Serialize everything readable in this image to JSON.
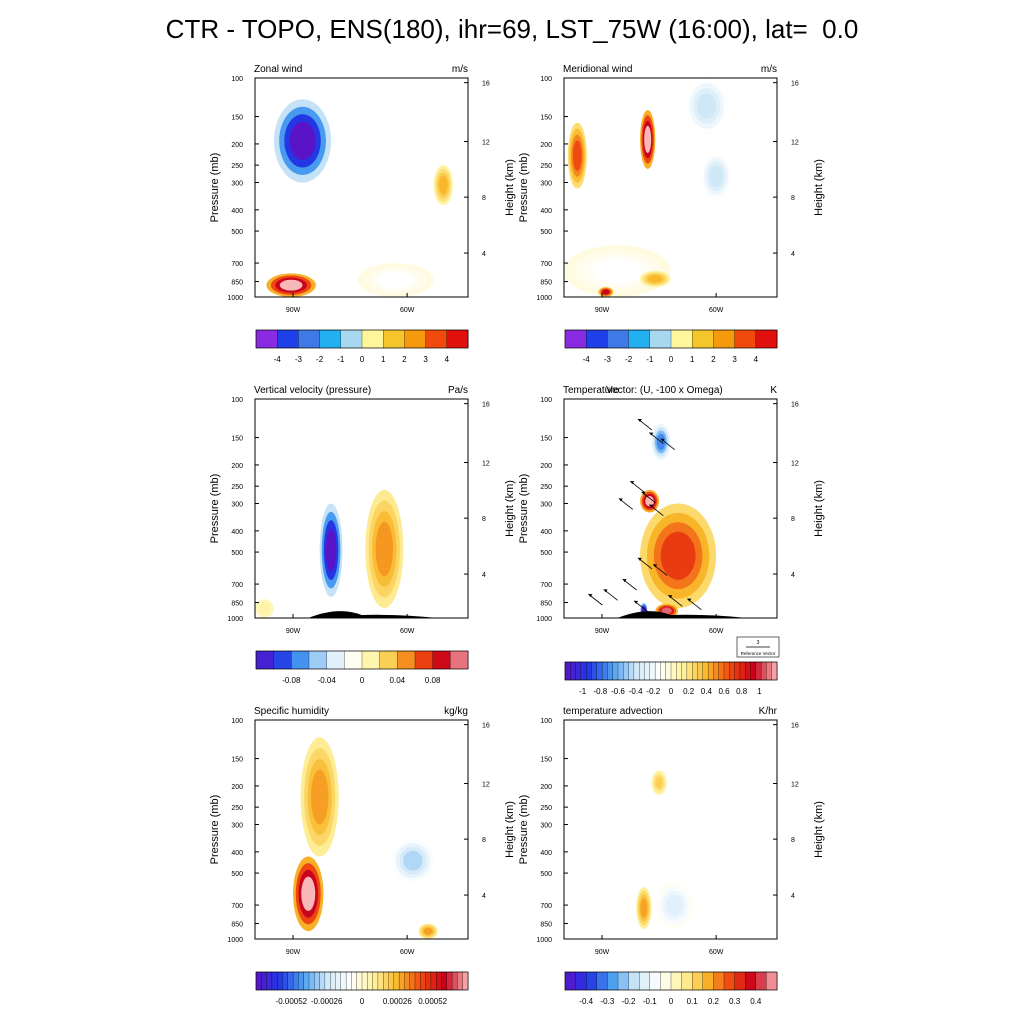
{
  "title": "CTR - TOPO, ENS(180), ihr=69, LST_75W (16:00), lat=  0.0",
  "colors": {
    "wind_scale": [
      "#8a2be2",
      "#1f3fe8",
      "#3d7ae5",
      "#22b0f0",
      "#a8d8f0",
      "#fff59a",
      "#f5c52c",
      "#f59a0c",
      "#f04a0c",
      "#e0100c",
      "#f9b0b0"
    ],
    "diverging_cold": "#6a1fd8",
    "diverging_neutral": "#ffffff",
    "diverging_hot": "#c8001a",
    "terrain": "#000000"
  },
  "chart_data": [
    {
      "type": "heatmap",
      "title": "Zonal wind",
      "units": "m/s",
      "ylabel": "Pressure (mb)",
      "ylabel_right": "Height (km)",
      "pressure_ticks": [
        "100",
        "150",
        "200",
        "250",
        "300",
        "400",
        "500",
        "700",
        "850",
        "1000"
      ],
      "height_ticks": [
        "4",
        "8",
        "12",
        "16"
      ],
      "x_ticks": [
        "90W",
        "60W"
      ],
      "colorbar_labels": [
        "-4",
        "-3",
        "-2",
        "-1",
        "0",
        "1",
        "2",
        "3",
        "4"
      ],
      "colorbar_colors": "wind_scale",
      "regions": [
        {
          "lon": [
            -95,
            -80
          ],
          "p": [
            125,
            300
          ],
          "value": -4.5
        },
        {
          "lon": [
            -97,
            -84
          ],
          "p": [
            780,
            1000
          ],
          "value": 4.5
        },
        {
          "lon": [
            -53,
            -48
          ],
          "p": [
            250,
            380
          ],
          "value": 1.5
        },
        {
          "lon": [
            -73,
            -53
          ],
          "p": [
            700,
            1000
          ],
          "value": -0.5
        }
      ]
    },
    {
      "type": "heatmap",
      "title": "Meridional wind",
      "units": "m/s",
      "ylabel": "Pressure (mb)",
      "ylabel_right": "Height (km)",
      "pressure_ticks": [
        "100",
        "150",
        "200",
        "250",
        "300",
        "400",
        "500",
        "700",
        "850",
        "1000"
      ],
      "height_ticks": [
        "4",
        "8",
        "12",
        "16"
      ],
      "x_ticks": [
        "90W",
        "60W"
      ],
      "colorbar_labels": [
        "-4",
        "-3",
        "-2",
        "-1",
        "0",
        "1",
        "2",
        "3",
        "4"
      ],
      "colorbar_colors": "wind_scale",
      "regions": [
        {
          "lon": [
            -80,
            -76
          ],
          "p": [
            140,
            260
          ],
          "value": 4.5
        },
        {
          "lon": [
            -99,
            -94
          ],
          "p": [
            160,
            320
          ],
          "value": 2.5
        },
        {
          "lon": [
            -68,
            -57
          ],
          "p": [
            100,
            180
          ],
          "value": -1.5
        },
        {
          "lon": [
            -64,
            -56
          ],
          "p": [
            220,
            360
          ],
          "value": -1.5
        },
        {
          "lon": [
            -100,
            -72
          ],
          "p": [
            580,
            1000
          ],
          "value": -0.5
        },
        {
          "lon": [
            -80,
            -72
          ],
          "p": [
            760,
            900
          ],
          "value": 1.5
        },
        {
          "lon": [
            -91,
            -87
          ],
          "p": [
            900,
            1000
          ],
          "value": 3.5
        }
      ]
    },
    {
      "type": "heatmap",
      "title": "Vertical velocity (pressure)",
      "units": "Pa/s",
      "ylabel": "Pressure (mb)",
      "ylabel_right": "Height (km)",
      "pressure_ticks": [
        "100",
        "150",
        "200",
        "250",
        "300",
        "400",
        "500",
        "700",
        "850",
        "1000"
      ],
      "height_ticks": [
        "4",
        "8",
        "12",
        "16"
      ],
      "x_ticks": [
        "90W",
        "60W"
      ],
      "colorbar_labels": [
        "-0.08",
        "-0.04",
        "0",
        "0.04",
        "0.08"
      ],
      "colorbar_colors": "wind_scale",
      "regions": [
        {
          "lon": [
            -83,
            -77
          ],
          "p": [
            300,
            800
          ],
          "value": -0.1
        },
        {
          "lon": [
            -71,
            -61
          ],
          "p": [
            260,
            900
          ],
          "value": 0.04
        },
        {
          "lon": [
            -100,
            -95
          ],
          "p": [
            820,
            1000
          ],
          "value": 0.01
        }
      ]
    },
    {
      "type": "heatmap",
      "title": "Temperature",
      "title_overlay": "Vector: (U, -100 x Omega)",
      "units": "K",
      "ylabel": "Pressure (mb)",
      "ylabel_right": "Height (km)",
      "pressure_ticks": [
        "100",
        "150",
        "200",
        "250",
        "300",
        "400",
        "500",
        "700",
        "850",
        "1000"
      ],
      "height_ticks": [
        "4",
        "8",
        "12",
        "16"
      ],
      "x_ticks": [
        "90W",
        "60W"
      ],
      "colorbar_labels": [
        "-1",
        "-0.8",
        "-0.6",
        "-0.4",
        "-0.2",
        "0",
        "0.2",
        "0.4",
        "0.6",
        "0.8",
        "1"
      ],
      "reference_vector": {
        "value": "3",
        "label": "Reference Vector"
      },
      "regions": [
        {
          "lon": [
            -77,
            -72
          ],
          "p": [
            130,
            190
          ],
          "value": -0.6
        },
        {
          "lon": [
            -80,
            -75
          ],
          "p": [
            260,
            330
          ],
          "value": 1.0
        },
        {
          "lon": [
            -80,
            -60
          ],
          "p": [
            300,
            900
          ],
          "value": 0.6
        },
        {
          "lon": [
            -76,
            -70
          ],
          "p": [
            860,
            1000
          ],
          "value": 0.9
        },
        {
          "lon": [
            -80,
            -78
          ],
          "p": [
            850,
            1000
          ],
          "value": -1.0
        }
      ]
    },
    {
      "type": "heatmap",
      "title": "Specific humidity",
      "units": "kg/kg",
      "ylabel": "Pressure (mb)",
      "ylabel_right": "Height (km)",
      "pressure_ticks": [
        "100",
        "150",
        "200",
        "250",
        "300",
        "400",
        "500",
        "700",
        "850",
        "1000"
      ],
      "height_ticks": [
        "4",
        "8",
        "12",
        "16"
      ],
      "x_ticks": [
        "90W",
        "60W"
      ],
      "colorbar_labels": [
        "-0.00052",
        "-0.00026",
        "0",
        "0.00026",
        "0.00052"
      ],
      "regions": [
        {
          "lon": [
            -90,
            -82
          ],
          "p": [
            420,
            920
          ],
          "value": 0.00052
        },
        {
          "lon": [
            -88,
            -78
          ],
          "p": [
            120,
            420
          ],
          "value": 0.0002
        },
        {
          "lon": [
            -64,
            -53
          ],
          "p": [
            350,
            550
          ],
          "value": -0.0002
        },
        {
          "lon": [
            -57,
            -52
          ],
          "p": [
            850,
            1000
          ],
          "value": 0.0002
        }
      ]
    },
    {
      "type": "heatmap",
      "title": "temperature advection",
      "units": "K/hr",
      "ylabel": "Pressure (mb)",
      "ylabel_right": "Height (km)",
      "pressure_ticks": [
        "100",
        "150",
        "200",
        "250",
        "300",
        "400",
        "500",
        "700",
        "850",
        "1000"
      ],
      "height_ticks": [
        "4",
        "8",
        "12",
        "16"
      ],
      "x_ticks": [
        "90W",
        "60W"
      ],
      "colorbar_labels": [
        "-0.4",
        "-0.3",
        "-0.2",
        "-0.1",
        "0",
        "0.1",
        "0.2",
        "0.3",
        "0.4"
      ],
      "regions": [
        {
          "lon": [
            -77,
            -73
          ],
          "p": [
            170,
            220
          ],
          "value": 0.1
        },
        {
          "lon": [
            -81,
            -77
          ],
          "p": [
            580,
            900
          ],
          "value": 0.15
        },
        {
          "lon": [
            -76,
            -66
          ],
          "p": [
            550,
            900
          ],
          "value": -0.1
        }
      ]
    }
  ]
}
